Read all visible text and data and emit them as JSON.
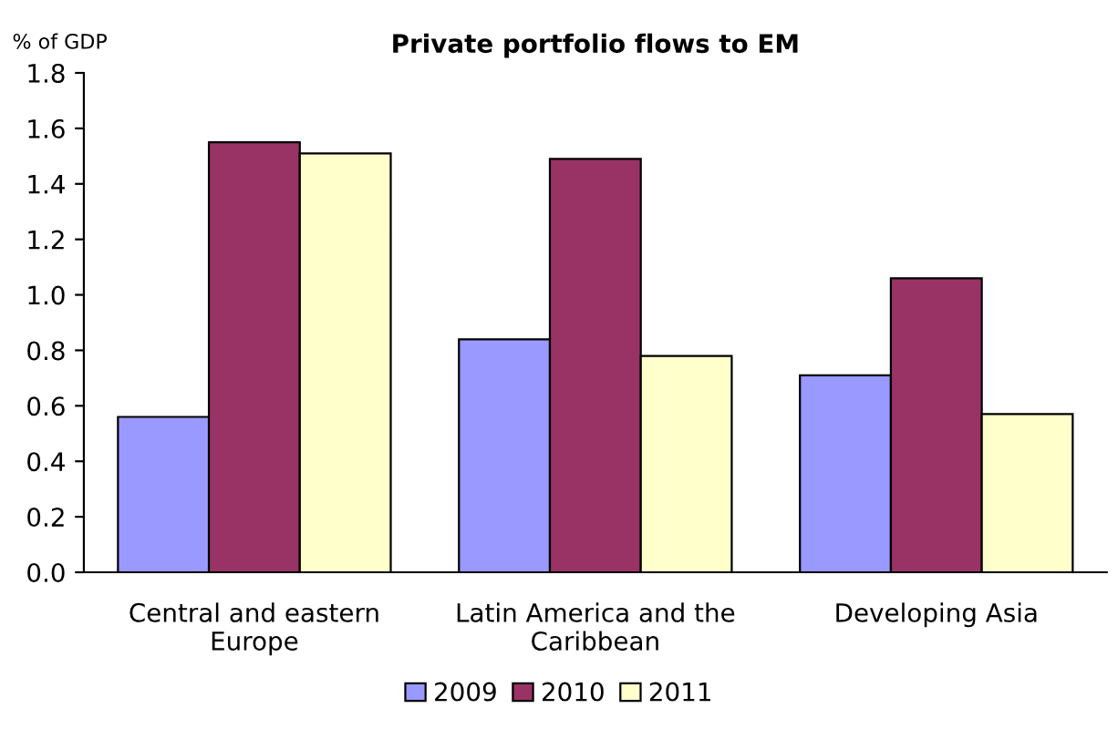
{
  "chart_data": {
    "type": "bar",
    "title": "Private portfolio flows to EM",
    "ylabel": "% of GDP",
    "categories": [
      "Central and eastern\nEurope",
      "Latin America and the\nCaribbean",
      "Developing Asia"
    ],
    "series": [
      {
        "name": "2009",
        "color": "#9999ff",
        "values": [
          0.56,
          0.84,
          0.71
        ]
      },
      {
        "name": "2010",
        "color": "#993366",
        "values": [
          1.55,
          1.49,
          1.06
        ]
      },
      {
        "name": "2011",
        "color": "#ffffcc",
        "values": [
          1.51,
          0.78,
          0.57
        ]
      }
    ],
    "ylim": [
      0,
      1.8
    ],
    "yticks": [
      {
        "value": 0,
        "label": "0.0"
      },
      0.2,
      0.4,
      0.6,
      0.8,
      {
        "value": 1,
        "label": "1.0"
      },
      1.2,
      1.4,
      1.6,
      1.8
    ],
    "grid": false,
    "legend": "bottom"
  }
}
